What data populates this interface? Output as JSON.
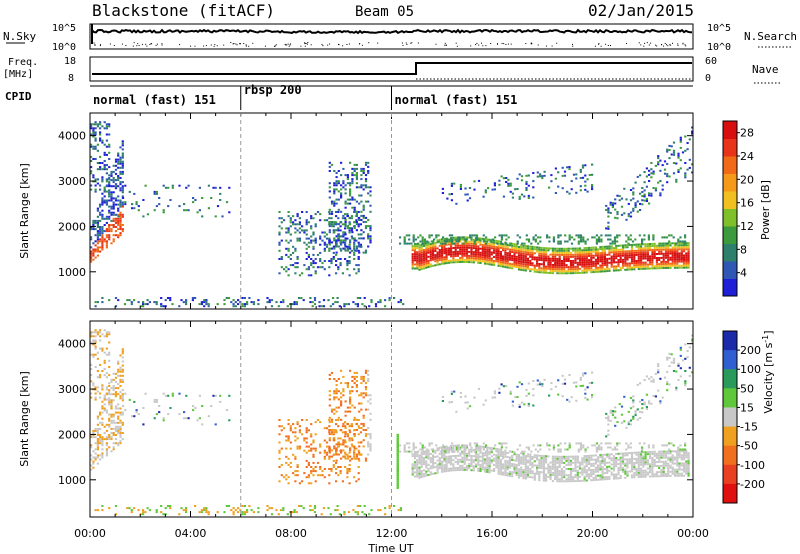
{
  "header": {
    "station": "Blackstone (fitACF)",
    "beam": "Beam 05",
    "date": "02/Jan/2015"
  },
  "top_panels": {
    "nsky_label": "N.Sky",
    "nsearch_label": "N.Search",
    "nsky_ticks": [
      "10^5",
      "10^0"
    ],
    "nsky_right_ticks": [
      "10^5",
      "10^0"
    ],
    "freq_label": "Freq.",
    "freq_unit": "[MHz]",
    "freq_ticks": [
      "18",
      "8"
    ],
    "nave_label": "Nave",
    "nave_ticks": [
      "60",
      "0"
    ],
    "cpid_label": "CPID",
    "cpid_segments": [
      {
        "label": "normal (fast) 151",
        "start_hr": 0,
        "end_hr": 6
      },
      {
        "label": "rbsp 200",
        "start_hr": 6,
        "end_hr": 12
      },
      {
        "label": "normal (fast) 151",
        "start_hr": 12,
        "end_hr": 24
      }
    ]
  },
  "chart_data": [
    {
      "type": "heatmap",
      "title": "Power",
      "ylabel": "Slant Range [km]",
      "xlabel": "Time UT",
      "xlim_hr": [
        0,
        24
      ],
      "ylim": [
        180,
        4500
      ],
      "y_ticks": [
        1000,
        2000,
        3000,
        4000
      ],
      "x_ticks": [
        "00:00",
        "04:00",
        "08:00",
        "12:00",
        "16:00",
        "20:00",
        "00:00"
      ],
      "colorbar": {
        "label": "Power [dB]",
        "ticks": [
          4,
          8,
          12,
          16,
          20,
          24,
          28
        ],
        "range": [
          0,
          30
        ],
        "colors": [
          "#1f1fd8",
          "#2f57b4",
          "#2e7f6c",
          "#3a9a3c",
          "#7fbf2a",
          "#f0c020",
          "#f59a18",
          "#f06a18",
          "#e83418",
          "#d80f0f"
        ]
      }
    },
    {
      "type": "heatmap",
      "title": "Velocity",
      "ylabel": "Slant Range [km]",
      "xlabel": "Time UT",
      "xlim_hr": [
        0,
        24
      ],
      "ylim": [
        180,
        4500
      ],
      "y_ticks": [
        1000,
        2000,
        3000,
        4000
      ],
      "x_ticks": [
        "00:00",
        "04:00",
        "08:00",
        "12:00",
        "16:00",
        "20:00",
        "00:00"
      ],
      "colorbar": {
        "label": "Velocity [m s^-1]",
        "ticks": [
          "200",
          "100",
          "50",
          "15",
          "-15",
          "-50",
          "-100",
          "-200"
        ],
        "colors": [
          "#1a2aa8",
          "#2f5fd0",
          "#2a9a5a",
          "#5fc83a",
          "#c8c8c8",
          "#f0a020",
          "#f07020",
          "#e84020",
          "#e01010"
        ]
      }
    }
  ]
}
